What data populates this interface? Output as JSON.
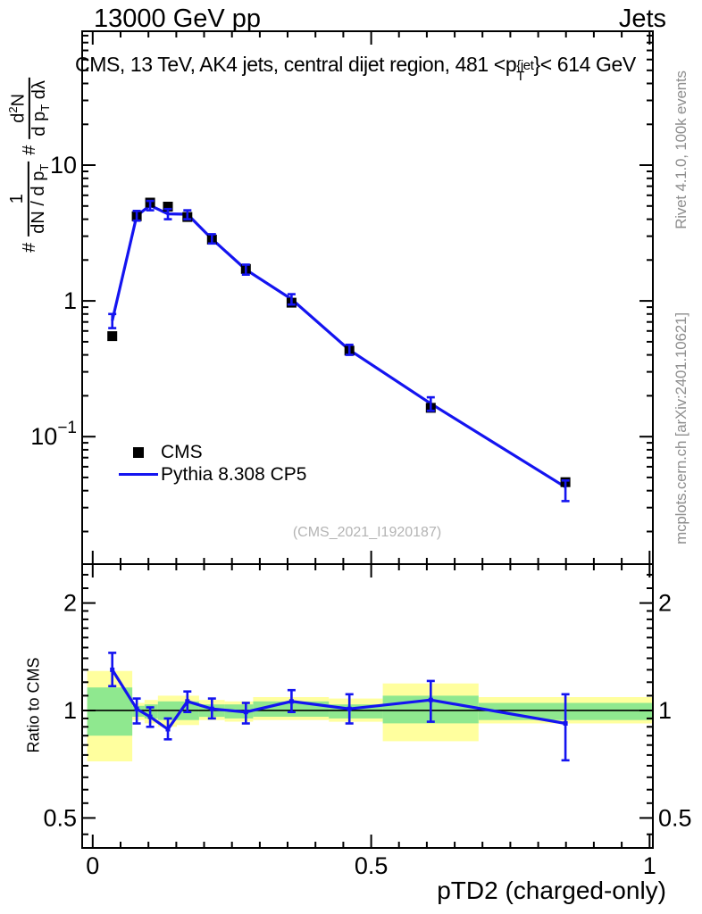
{
  "header": {
    "top_left": "13000 GeV pp",
    "top_right": "Jets",
    "title_prefix": "CMS, 13 TeV, AK4 jets, central dijet region, 481 <p",
    "title_sup": "{jet",
    "title_sub": "T",
    "title_suffix": "}< 614 GeV"
  },
  "side_captions": {
    "right_top": "Rivet 4.1.0,  100k events",
    "right_bottom": "mcplots.cern.ch [arXiv:2401.10621]"
  },
  "watermark": "(CMS_2021_I1920187)",
  "legend": [
    {
      "label": "CMS",
      "marker": "filled-square",
      "color": "#000000"
    },
    {
      "label": "Pythia 8.308 CP5",
      "marker": "line",
      "color": "#1414f0"
    }
  ],
  "ylabel_main": {
    "hash1": "#",
    "frac1_num": "1",
    "frac1_den_pre": "dN / d p",
    "frac1_den_sub": "T",
    "hash2": "#",
    "frac2_num_pre": "d",
    "frac2_num_sup": "2",
    "frac2_num_post": "N",
    "frac2_den_pre": "d p",
    "frac2_den_sub": "T",
    "frac2_den_post": " dλ"
  },
  "ylabel_ratio": "Ratio to CMS",
  "xlabel": "pTD2 (charged-only)",
  "colors": {
    "cms": "#000000",
    "pythia": "#1414f0",
    "band_outer": "#ffff9e",
    "band_inner": "#8fe88f",
    "caption_gray": "#8e8e8e",
    "watermark_gray": "#b4b4b4"
  },
  "chart_data": {
    "type": "line",
    "title": "CMS, 13 TeV, AK4 jets, central dijet region, 481 <pT{jet}< 614 GeV",
    "xlabel": "pTD2 (charged-only)",
    "ylabel": "# 1/(dN/dpT) # d2N/(dpT dlambda)",
    "legend_position": "middle-left",
    "grid": false,
    "x_axis": {
      "min": -0.019,
      "max": 1.006,
      "major_ticks": [
        0,
        0.5,
        1
      ],
      "major_labels": [
        "0",
        "0.5",
        "1"
      ],
      "minor_step": 0.05
    },
    "y_axis_main": {
      "scale": "log",
      "min": 0.0115,
      "max": 97,
      "major_ticks": [
        {
          "v": 10,
          "base": "10",
          "sup": ""
        },
        {
          "v": 1,
          "base": "1",
          "sup": ""
        },
        {
          "v": 0.1,
          "base": "10",
          "sup": "−1"
        }
      ]
    },
    "y_axis_ratio": {
      "scale": "log",
      "min": 0.412,
      "max": 2.57,
      "label": "Ratio to CMS",
      "major_ticks": [
        {
          "v": 2,
          "base": "2"
        },
        {
          "v": 1,
          "base": "1"
        },
        {
          "v": 0.5,
          "base": "0.5"
        }
      ]
    },
    "series": [
      {
        "name": "CMS",
        "type": "points",
        "color": "#000000",
        "marker": "filled-square",
        "points": [
          [
            0.035,
            0.55
          ],
          [
            0.079,
            4.2
          ],
          [
            0.103,
            5.3
          ],
          [
            0.135,
            4.95
          ],
          [
            0.17,
            4.15
          ],
          [
            0.214,
            2.83
          ],
          [
            0.275,
            1.72
          ],
          [
            0.357,
            0.97
          ],
          [
            0.461,
            0.43
          ],
          [
            0.607,
            0.163
          ],
          [
            0.849,
            0.0462
          ]
        ]
      },
      {
        "name": "Pythia 8.308 CP5",
        "type": "line",
        "color": "#1414f0",
        "points_with_errors": [
          [
            0.035,
            0.715,
            0.63,
            0.8
          ],
          [
            0.079,
            4.25,
            3.9,
            4.6
          ],
          [
            0.103,
            5.05,
            4.65,
            5.45
          ],
          [
            0.135,
            4.38,
            4.0,
            4.75
          ],
          [
            0.17,
            4.35,
            4.0,
            4.65
          ],
          [
            0.214,
            2.86,
            2.65,
            3.1
          ],
          [
            0.275,
            1.7,
            1.56,
            1.85
          ],
          [
            0.357,
            1.03,
            0.94,
            1.12
          ],
          [
            0.461,
            0.435,
            0.4,
            0.475
          ],
          [
            0.607,
            0.175,
            0.155,
            0.195
          ],
          [
            0.849,
            0.0425,
            0.0335,
            0.0475
          ]
        ]
      }
    ],
    "ratio_panel": {
      "reference": 1,
      "points_with_errors": [
        [
          0.035,
          1.3,
          1.17,
          1.45
        ],
        [
          0.079,
          1.01,
          0.92,
          1.08
        ],
        [
          0.103,
          0.96,
          0.9,
          1.02
        ],
        [
          0.135,
          0.886,
          0.83,
          0.95
        ],
        [
          0.17,
          1.06,
          0.99,
          1.13
        ],
        [
          0.214,
          1.01,
          0.95,
          1.08
        ],
        [
          0.275,
          0.99,
          0.92,
          1.05
        ],
        [
          0.357,
          1.06,
          0.99,
          1.14
        ],
        [
          0.461,
          1.01,
          0.92,
          1.11
        ],
        [
          0.607,
          1.07,
          0.93,
          1.21
        ],
        [
          0.849,
          0.92,
          0.725,
          1.11
        ]
      ],
      "bands": [
        [
          -0.01,
          0.071,
          0.72,
          1.29,
          0.85,
          1.16
        ],
        [
          0.071,
          0.093,
          0.94,
          1.05,
          0.96,
          1.03
        ],
        [
          0.093,
          0.117,
          0.92,
          1.07,
          0.95,
          1.04
        ],
        [
          0.117,
          0.151,
          0.9,
          1.1,
          0.94,
          1.06
        ],
        [
          0.151,
          0.191,
          0.91,
          1.1,
          0.94,
          1.06
        ],
        [
          0.191,
          0.237,
          0.94,
          1.07,
          0.96,
          1.04
        ],
        [
          0.237,
          0.288,
          0.93,
          1.06,
          0.95,
          1.04
        ],
        [
          0.288,
          0.424,
          0.94,
          1.09,
          0.96,
          1.06
        ],
        [
          0.424,
          0.521,
          0.93,
          1.08,
          0.95,
          1.04
        ],
        [
          0.521,
          0.693,
          0.82,
          1.19,
          0.92,
          1.1
        ],
        [
          0.693,
          1.006,
          0.92,
          1.09,
          0.94,
          1.05
        ]
      ]
    }
  }
}
